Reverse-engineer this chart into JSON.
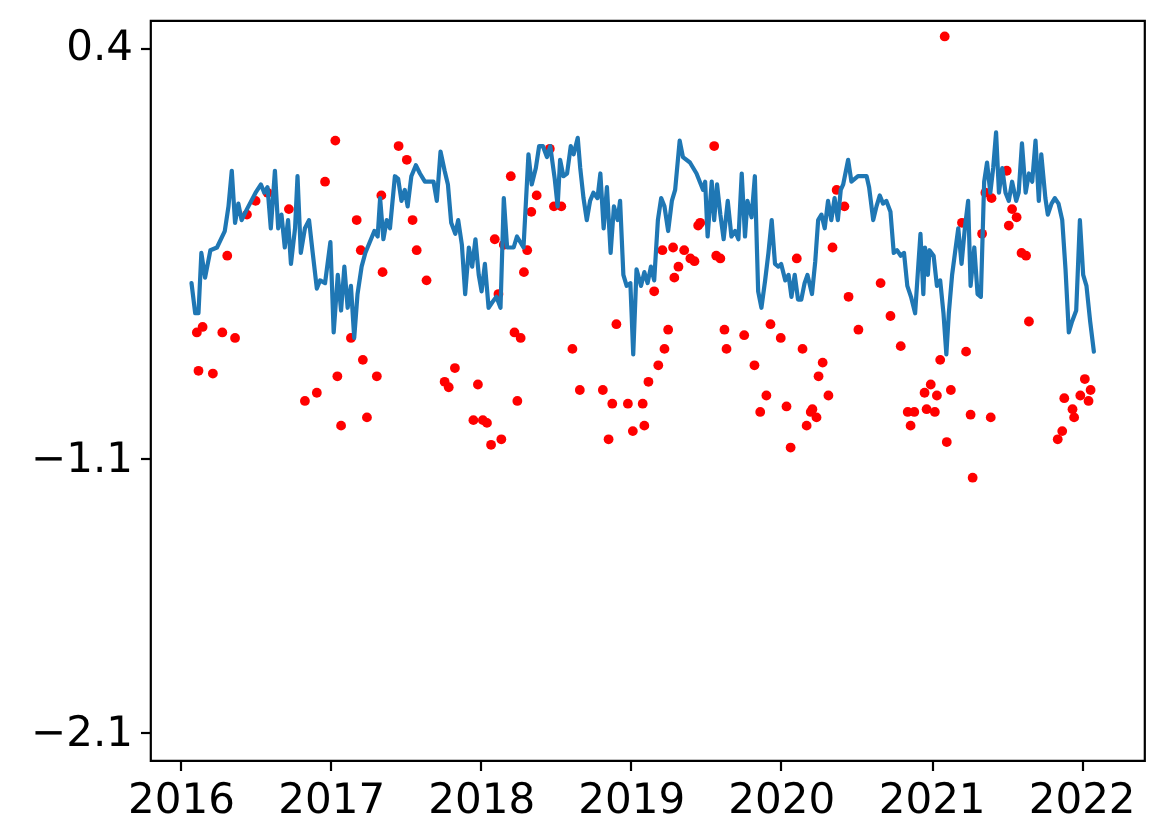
{
  "chart_data": {
    "type": "line",
    "xlim": [
      "2015-10-19",
      "2022-06-03"
    ],
    "xticks": [
      "2016",
      "2017",
      "2018",
      "2019",
      "2020",
      "2021",
      "2022"
    ],
    "ylim": [
      -2.2,
      0.5
    ],
    "yticks": [
      0.4,
      -1.1,
      -2.1
    ],
    "series": [
      {
        "type": "scatter",
        "marker": "circle",
        "color": "#ff0000",
        "x": [
          "2016-02-10",
          "2016-02-14",
          "2016-02-24",
          "2016-03-20",
          "2016-04-12",
          "2016-04-24",
          "2016-05-13",
          "2016-06-11",
          "2016-07-02",
          "2016-07-31",
          "2016-09-21",
          "2016-10-30",
          "2016-11-28",
          "2016-12-18",
          "2017-01-12",
          "2017-01-17",
          "2017-01-26",
          "2017-02-19",
          "2017-03-05",
          "2017-03-15",
          "2017-03-20",
          "2017-03-30",
          "2017-04-23",
          "2017-05-04",
          "2017-05-07",
          "2017-06-15",
          "2017-07-05",
          "2017-07-19",
          "2017-07-29",
          "2017-08-22",
          "2017-10-05",
          "2017-10-15",
          "2017-10-30",
          "2017-12-14",
          "2017-12-25",
          "2018-01-06",
          "2018-01-16",
          "2018-01-26",
          "2018-02-04",
          "2018-02-13",
          "2018-02-20",
          "2018-02-26",
          "2018-03-15",
          "2018-03-24",
          "2018-03-31",
          "2018-04-08",
          "2018-04-16",
          "2018-04-24",
          "2018-05-04",
          "2018-05-17",
          "2018-06-18",
          "2018-06-28",
          "2018-07-16",
          "2018-08-12",
          "2018-08-30",
          "2018-10-25",
          "2018-11-08",
          "2018-11-17",
          "2018-11-27",
          "2018-12-25",
          "2019-01-06",
          "2019-01-30",
          "2019-02-03",
          "2019-02-13",
          "2019-02-27",
          "2019-03-09",
          "2019-03-19",
          "2019-03-24",
          "2019-04-02",
          "2019-04-14",
          "2019-04-17",
          "2019-04-27",
          "2019-05-11",
          "2019-05-26",
          "2019-06-05",
          "2019-06-14",
          "2019-06-19",
          "2019-07-23",
          "2019-07-28",
          "2019-08-07",
          "2019-08-17",
          "2019-08-22",
          "2019-10-04",
          "2019-10-29",
          "2019-11-12",
          "2019-11-27",
          "2019-12-07",
          "2020-01-01",
          "2020-01-15",
          "2020-01-25",
          "2020-02-09",
          "2020-02-23",
          "2020-03-04",
          "2020-03-14",
          "2020-03-18",
          "2020-03-28",
          "2020-04-02",
          "2020-04-12",
          "2020-04-26",
          "2020-05-06",
          "2020-05-16",
          "2020-06-04",
          "2020-06-14",
          "2020-07-08",
          "2020-08-31",
          "2020-09-24",
          "2020-10-19",
          "2020-11-05",
          "2020-11-12",
          "2020-11-21",
          "2020-12-16",
          "2020-12-21",
          "2020-12-31",
          "2021-01-10",
          "2021-01-15",
          "2021-01-23",
          "2021-02-03",
          "2021-02-08",
          "2021-02-18",
          "2021-03-17",
          "2021-03-27",
          "2021-04-07",
          "2021-04-12",
          "2021-05-05",
          "2021-05-13",
          "2021-05-26",
          "2021-05-28",
          "2021-07-04",
          "2021-07-09",
          "2021-07-17",
          "2021-07-28",
          "2021-08-09",
          "2021-08-20",
          "2021-08-27",
          "2021-11-05",
          "2021-11-16",
          "2021-11-21",
          "2021-12-11",
          "2021-12-15",
          "2021-12-30",
          "2022-01-10",
          "2022-01-19",
          "2022-01-24"
        ],
        "values": [
          -0.64,
          -0.78,
          -0.62,
          -0.79,
          -0.64,
          -0.36,
          -0.66,
          -0.21,
          -0.16,
          -0.13,
          -0.19,
          -0.89,
          -0.86,
          -0.09,
          0.06,
          -0.8,
          -0.98,
          -0.66,
          -0.23,
          -0.34,
          -0.74,
          -0.95,
          -0.8,
          -0.14,
          -0.42,
          0.04,
          -0.01,
          -0.23,
          -0.34,
          -0.45,
          -0.82,
          -0.84,
          -0.77,
          -0.96,
          -0.83,
          -0.96,
          -0.97,
          -1.05,
          -0.3,
          -0.5,
          -1.03,
          -0.32,
          -0.07,
          -0.64,
          -0.89,
          -0.66,
          -0.42,
          -0.34,
          -0.2,
          -0.14,
          0.03,
          -0.18,
          -0.18,
          -0.7,
          -0.85,
          -0.85,
          -1.03,
          -0.9,
          -0.61,
          -0.9,
          -1.0,
          -0.9,
          -0.98,
          -0.82,
          -0.49,
          -0.76,
          -0.34,
          -0.7,
          -0.63,
          -0.33,
          -0.44,
          -0.4,
          -0.34,
          -0.37,
          -0.38,
          -0.25,
          -0.24,
          0.04,
          -0.36,
          -0.37,
          -0.63,
          -0.7,
          -0.65,
          -0.76,
          -0.93,
          -0.87,
          -0.61,
          -0.66,
          -0.91,
          -1.06,
          -0.37,
          -0.7,
          -0.98,
          -0.93,
          -0.92,
          -0.95,
          -0.8,
          -0.75,
          -0.87,
          -0.33,
          -0.12,
          -0.18,
          -0.51,
          -0.63,
          -0.46,
          -0.58,
          -0.69,
          -0.93,
          -0.98,
          -0.93,
          -0.86,
          -0.92,
          -0.83,
          -0.93,
          -0.87,
          -0.74,
          0.44,
          -1.04,
          -0.85,
          -0.24,
          -0.71,
          -0.94,
          -1.17,
          -0.28,
          -0.13,
          -0.95,
          -0.15,
          -0.05,
          -0.25,
          -0.19,
          -0.22,
          -0.35,
          -0.36,
          -0.6,
          -1.03,
          -1.0,
          -0.88,
          -0.92,
          -0.95,
          -0.87,
          -0.81,
          -0.89,
          -0.85
        ]
      },
      {
        "type": "line",
        "color": "#1f77b4",
        "x": [
          "2016-01-28",
          "2016-02-06",
          "2016-02-14",
          "2016-02-21",
          "2016-03-01",
          "2016-03-14",
          "2016-03-30",
          "2016-04-18",
          "2016-04-27",
          "2016-05-05",
          "2016-05-13",
          "2016-05-21",
          "2016-05-29",
          "2016-06-11",
          "2016-07-02",
          "2016-07-15",
          "2016-07-23",
          "2016-07-31",
          "2016-08-08",
          "2016-08-18",
          "2016-08-26",
          "2016-09-03",
          "2016-09-11",
          "2016-09-19",
          "2016-09-26",
          "2016-10-06",
          "2016-10-12",
          "2016-10-20",
          "2016-10-30",
          "2016-11-09",
          "2016-11-18",
          "2016-11-28",
          "2016-12-06",
          "2016-12-18",
          "2016-12-31",
          "2017-01-08",
          "2017-01-18",
          "2017-01-26",
          "2017-02-03",
          "2017-02-11",
          "2017-02-19",
          "2017-02-27",
          "2017-03-07",
          "2017-03-17",
          "2017-03-26",
          "2017-04-17",
          "2017-04-25",
          "2017-05-01",
          "2017-05-09",
          "2017-05-17",
          "2017-05-25",
          "2017-06-06",
          "2017-06-14",
          "2017-06-22",
          "2017-06-30",
          "2017-07-07",
          "2017-07-16",
          "2017-07-27",
          "2017-08-06",
          "2017-08-18",
          "2017-09-08",
          "2017-09-16",
          "2017-09-25",
          "2017-10-05",
          "2017-10-13",
          "2017-10-21",
          "2017-10-31",
          "2017-11-07",
          "2017-11-16",
          "2017-11-24",
          "2017-12-03",
          "2017-12-11",
          "2017-12-19",
          "2017-12-27",
          "2018-01-03",
          "2018-01-11",
          "2018-01-20",
          "2018-01-29",
          "2018-02-08",
          "2018-02-18",
          "2018-02-26",
          "2018-03-06",
          "2018-03-22",
          "2018-03-30",
          "2018-04-15",
          "2018-04-27",
          "2018-05-05",
          "2018-05-15",
          "2018-05-23",
          "2018-06-01",
          "2018-06-11",
          "2018-06-19",
          "2018-06-30",
          "2018-07-07",
          "2018-07-13",
          "2018-07-21",
          "2018-07-30",
          "2018-08-08",
          "2018-08-15",
          "2018-08-25",
          "2018-08-31",
          "2018-09-08",
          "2018-09-16",
          "2018-09-24",
          "2018-10-02",
          "2018-10-12",
          "2018-10-19",
          "2018-10-27",
          "2018-11-04",
          "2018-11-13",
          "2018-11-21",
          "2018-11-30",
          "2018-12-06",
          "2018-12-14",
          "2018-12-22",
          "2018-12-31",
          "2019-01-07",
          "2019-01-15",
          "2019-01-26",
          "2019-02-03",
          "2019-02-11",
          "2019-02-19",
          "2019-02-27",
          "2019-03-08",
          "2019-03-16",
          "2019-03-24",
          "2019-04-02",
          "2019-04-11",
          "2019-04-19",
          "2019-04-30",
          "2019-05-08",
          "2019-05-25",
          "2019-06-10",
          "2019-06-18",
          "2019-06-26",
          "2019-07-01",
          "2019-07-07",
          "2019-07-17",
          "2019-07-23",
          "2019-07-30",
          "2019-08-07",
          "2019-08-15",
          "2019-08-25",
          "2019-09-03",
          "2019-09-12",
          "2019-09-20",
          "2019-09-28",
          "2019-10-06",
          "2019-10-12",
          "2019-10-22",
          "2019-10-30",
          "2019-11-07",
          "2019-11-15",
          "2019-11-24",
          "2019-12-02",
          "2019-12-10",
          "2019-12-18",
          "2019-12-26",
          "2020-01-02",
          "2020-01-12",
          "2020-01-20",
          "2020-01-27",
          "2020-02-04",
          "2020-02-12",
          "2020-02-20",
          "2020-02-28",
          "2020-03-06",
          "2020-03-17",
          "2020-03-25",
          "2020-04-01",
          "2020-04-09",
          "2020-04-17",
          "2020-04-25",
          "2020-05-03",
          "2020-05-11",
          "2020-05-19",
          "2020-05-26",
          "2020-06-01",
          "2020-06-13",
          "2020-06-21",
          "2020-07-07",
          "2020-07-28",
          "2020-08-03",
          "2020-08-13",
          "2020-08-21",
          "2020-08-29",
          "2020-09-06",
          "2020-09-14",
          "2020-09-24",
          "2020-10-02",
          "2020-10-10",
          "2020-10-19",
          "2020-10-27",
          "2020-11-04",
          "2020-11-13",
          "2020-11-23",
          "2020-12-01",
          "2020-12-06",
          "2020-12-13",
          "2020-12-17",
          "2020-12-24",
          "2020-12-28",
          "2021-01-07",
          "2021-01-15",
          "2021-01-23",
          "2021-01-31",
          "2021-02-07",
          "2021-02-13",
          "2021-02-21",
          "2021-02-28",
          "2021-03-08",
          "2021-03-16",
          "2021-03-24",
          "2021-04-01",
          "2021-04-07",
          "2021-04-16",
          "2021-04-24",
          "2021-05-02",
          "2021-05-10",
          "2021-05-17",
          "2021-05-25",
          "2021-06-01",
          "2021-06-08",
          "2021-06-15",
          "2021-06-23",
          "2021-07-01",
          "2021-07-09",
          "2021-07-17",
          "2021-07-27",
          "2021-08-02",
          "2021-08-10",
          "2021-08-19",
          "2021-08-27",
          "2021-09-04",
          "2021-09-12",
          "2021-09-20",
          "2021-09-26",
          "2021-10-06",
          "2021-10-12",
          "2021-10-21",
          "2021-10-29",
          "2021-11-07",
          "2021-11-16",
          "2021-11-24",
          "2021-12-02",
          "2021-12-10",
          "2021-12-20",
          "2021-12-29",
          "2022-01-06",
          "2022-01-14",
          "2022-01-23",
          "2022-02-01"
        ],
        "values": [
          -0.46,
          -0.57,
          -0.57,
          -0.35,
          -0.44,
          -0.34,
          -0.33,
          -0.27,
          -0.18,
          -0.05,
          -0.24,
          -0.17,
          -0.23,
          -0.19,
          -0.13,
          -0.1,
          -0.13,
          -0.11,
          -0.26,
          -0.05,
          -0.26,
          -0.21,
          -0.33,
          -0.23,
          -0.39,
          -0.26,
          -0.07,
          -0.35,
          -0.26,
          -0.23,
          -0.35,
          -0.48,
          -0.45,
          -0.46,
          -0.31,
          -0.64,
          -0.43,
          -0.56,
          -0.4,
          -0.55,
          -0.47,
          -0.66,
          -0.5,
          -0.4,
          -0.35,
          -0.27,
          -0.29,
          -0.15,
          -0.3,
          -0.23,
          -0.26,
          -0.07,
          -0.08,
          -0.16,
          -0.12,
          -0.18,
          -0.07,
          -0.03,
          -0.06,
          -0.09,
          -0.09,
          -0.16,
          0.02,
          -0.05,
          -0.1,
          -0.24,
          -0.28,
          -0.23,
          -0.32,
          -0.5,
          -0.33,
          -0.4,
          -0.3,
          -0.43,
          -0.49,
          -0.39,
          -0.55,
          -0.53,
          -0.51,
          -0.55,
          -0.15,
          -0.33,
          -0.33,
          -0.29,
          -0.33,
          0.01,
          -0.1,
          -0.04,
          0.04,
          0.04,
          0.0,
          0.04,
          -0.08,
          -0.18,
          -0.01,
          -0.07,
          -0.06,
          0.04,
          0.01,
          0.07,
          -0.04,
          -0.15,
          -0.23,
          -0.16,
          -0.13,
          -0.15,
          -0.06,
          -0.26,
          -0.11,
          -0.35,
          -0.18,
          -0.23,
          -0.16,
          -0.43,
          -0.47,
          -0.46,
          -0.72,
          -0.41,
          -0.47,
          -0.42,
          -0.46,
          -0.4,
          -0.45,
          -0.23,
          -0.15,
          -0.18,
          -0.27,
          -0.16,
          -0.12,
          0.06,
          0.0,
          -0.02,
          -0.06,
          -0.09,
          -0.12,
          -0.09,
          -0.29,
          -0.09,
          -0.23,
          -0.1,
          -0.21,
          -0.3,
          -0.16,
          -0.29,
          -0.27,
          -0.3,
          -0.06,
          -0.29,
          -0.16,
          -0.22,
          -0.07,
          -0.49,
          -0.55,
          -0.45,
          -0.35,
          -0.23,
          -0.39,
          -0.4,
          -0.39,
          -0.45,
          -0.43,
          -0.51,
          -0.43,
          -0.52,
          -0.52,
          -0.46,
          -0.43,
          -0.5,
          -0.38,
          -0.23,
          -0.21,
          -0.26,
          -0.16,
          -0.23,
          -0.15,
          -0.23,
          -0.12,
          -0.1,
          -0.01,
          -0.09,
          -0.07,
          -0.07,
          -0.11,
          -0.23,
          -0.18,
          -0.14,
          -0.17,
          -0.16,
          -0.2,
          -0.35,
          -0.34,
          -0.36,
          -0.35,
          -0.47,
          -0.51,
          -0.57,
          -0.39,
          -0.28,
          -0.5,
          -0.33,
          -0.43,
          -0.34,
          -0.36,
          -0.47,
          -0.45,
          -0.57,
          -0.72,
          -0.57,
          -0.43,
          -0.35,
          -0.26,
          -0.39,
          -0.26,
          -0.16,
          -0.47,
          -0.33,
          -0.5,
          -0.51,
          -0.09,
          -0.02,
          -0.13,
          -0.04,
          0.09,
          -0.13,
          -0.04,
          -0.13,
          -0.16,
          -0.09,
          -0.16,
          -0.13,
          0.05,
          -0.13,
          -0.06,
          -0.09,
          0.06,
          -0.16,
          0.01,
          -0.15,
          -0.21,
          -0.17,
          -0.15,
          -0.17,
          -0.23,
          -0.41,
          -0.64,
          -0.6,
          -0.56,
          -0.23,
          -0.43,
          -0.47,
          -0.6,
          -0.71
        ]
      }
    ]
  }
}
